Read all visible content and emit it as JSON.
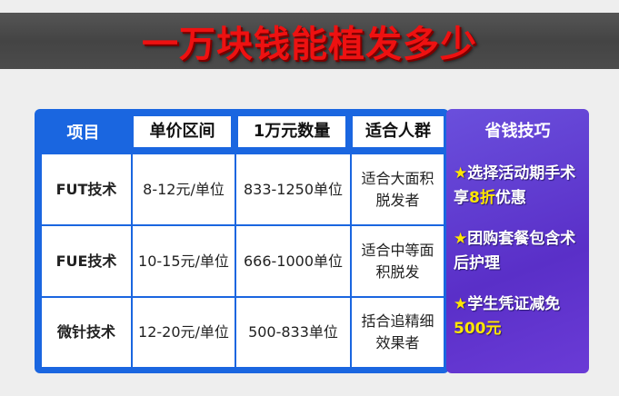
{
  "title": "一万块钱能植发多少",
  "table": {
    "headers": [
      "项目",
      "单价区间",
      "1万元数量",
      "适合人群"
    ],
    "rows": [
      {
        "item": "FUT技术",
        "price": "8-12元/单位",
        "quantity": "833-1250单位",
        "audience": "适合大面积脱发者"
      },
      {
        "item": "FUE技术",
        "price": "10-15元/单位",
        "quantity": "666-1000单位",
        "audience": "适合中等面积脱发"
      },
      {
        "item": "微针技术",
        "price": "12-20元/单位",
        "quantity": "500-833单位",
        "audience": "括合追精细效果者"
      }
    ]
  },
  "tips": {
    "title": "省钱技巧",
    "items": [
      {
        "star": "★",
        "before": "选择活动期手术享",
        "highlight": "8折",
        "after": "优惠"
      },
      {
        "star": "★",
        "before": "团购套餐包含术后护理",
        "highlight": "",
        "after": ""
      },
      {
        "star": "★",
        "before": "学生凭证减免",
        "highlight": "500元",
        "after": ""
      }
    ]
  },
  "colors": {
    "title": "#ee1111",
    "table_border": "#1a66e0",
    "tips_bg": "#5a2fc8",
    "highlight": "#ffe600"
  }
}
